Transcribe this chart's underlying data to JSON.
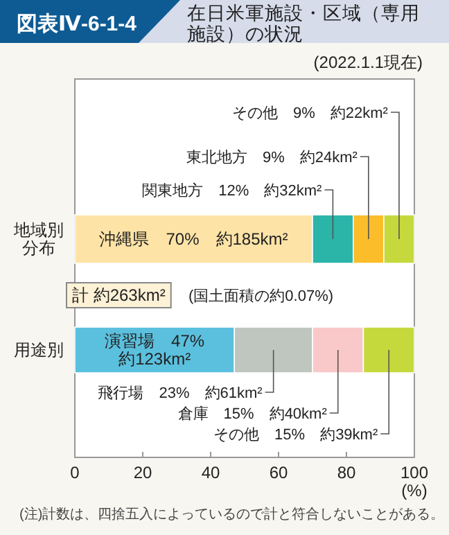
{
  "chart_data": {
    "type": "bar",
    "orientation": "horizontal",
    "stacked": true,
    "title": "在日米軍施設・区域（専用施設）の状況",
    "subtitle": "(2022.1.1現在)",
    "xlabel": "(%)",
    "categories": [
      "地域別分布",
      "用途別"
    ],
    "xlim": [
      0,
      100
    ],
    "xticks": [
      0,
      20,
      40,
      60,
      80,
      100
    ],
    "grid": false,
    "series": [
      {
        "name": "沖縄県",
        "color": "#fde3a6",
        "values": [
          70,
          null
        ],
        "value_labels": [
          "70%　約185km²",
          null
        ]
      },
      {
        "name": "関東地方",
        "color": "#2bb5a9",
        "values": [
          12,
          null
        ],
        "value_labels": [
          "12%　約32km²",
          null
        ]
      },
      {
        "name": "東北地方",
        "color": "#fbbd2a",
        "values": [
          9,
          null
        ],
        "value_labels": [
          "9%　約24km²",
          null
        ]
      },
      {
        "name": "その他",
        "color": "#c5d93d",
        "values": [
          9,
          null
        ],
        "value_labels": [
          "9%　約22km²",
          null
        ]
      },
      {
        "name": "演習場",
        "color": "#5bc0de",
        "values": [
          null,
          47
        ],
        "value_labels": [
          null,
          "47%\n約123km²"
        ]
      },
      {
        "name": "飛行場",
        "color": "#bfc5bf",
        "values": [
          null,
          23
        ],
        "value_labels": [
          null,
          "23%　約61km²"
        ]
      },
      {
        "name": "倉庫",
        "color": "#f9c8c8",
        "values": [
          null,
          15
        ],
        "value_labels": [
          null,
          "15%　約40km²"
        ]
      },
      {
        "name": "その他",
        "color": "#c5d93d",
        "values": [
          null,
          15
        ],
        "value_labels": [
          null,
          "15%　約39km²"
        ]
      }
    ],
    "annotations": [
      "図表Ⅳ-6-1-4",
      "計 約263km²",
      "(国土面積の約0.07%)",
      "(注)計数は、四捨五入によっているので計と符合しないことがある。"
    ]
  }
}
